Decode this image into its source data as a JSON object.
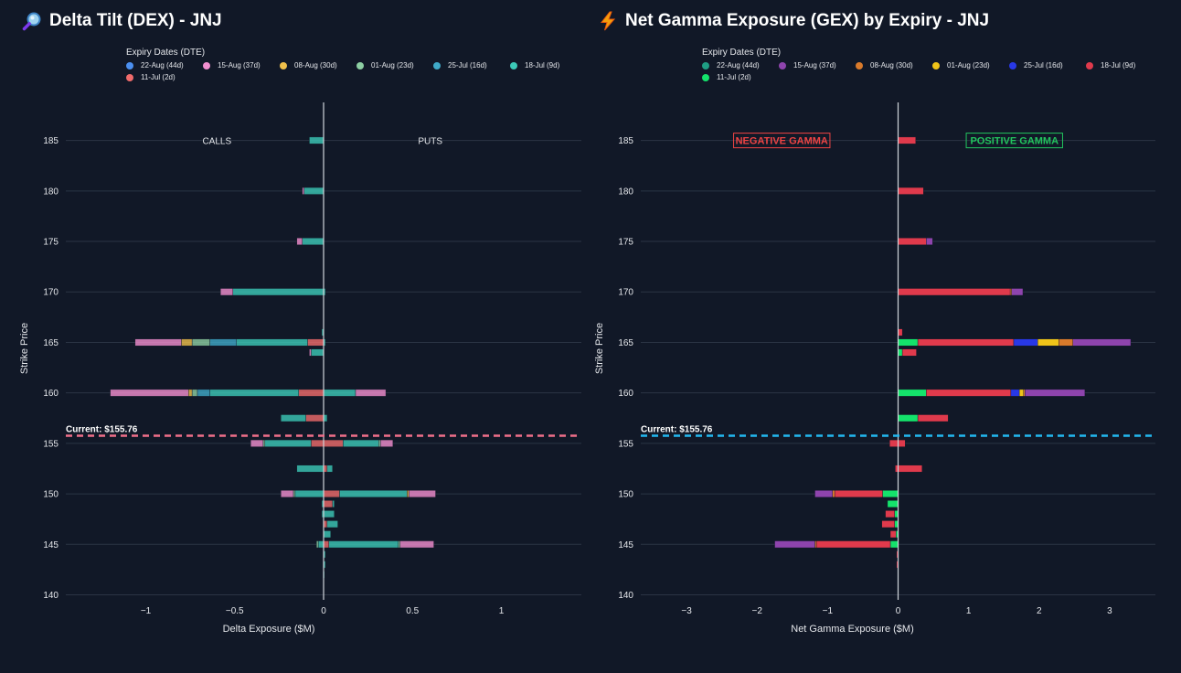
{
  "left": {
    "title": "Delta Tilt (DEX) - JNJ",
    "icon": "magnifier-icon",
    "legend_title": "Expiry Dates (DTE)",
    "legend": [
      {
        "label": "22-Aug (44d)",
        "color": "#4b8ff0"
      },
      {
        "label": "15-Aug (37d)",
        "color": "#f28fd0"
      },
      {
        "label": "08-Aug (30d)",
        "color": "#f0c04b"
      },
      {
        "label": "01-Aug (23d)",
        "color": "#8dcfa3"
      },
      {
        "label": "25-Jul (16d)",
        "color": "#3fa9c8"
      },
      {
        "label": "18-Jul (9d)",
        "color": "#3cc9b8"
      },
      {
        "label": "11-Jul (2d)",
        "color": "#f06b6b"
      }
    ]
  },
  "right": {
    "title": "Net Gamma Exposure (GEX) by Expiry - JNJ",
    "icon": "lightning-icon",
    "legend_title": "Expiry Dates (DTE)",
    "legend": [
      {
        "label": "22-Aug (44d)",
        "color": "#1f9e84"
      },
      {
        "label": "15-Aug (37d)",
        "color": "#8e44ad"
      },
      {
        "label": "08-Aug (30d)",
        "color": "#d97a2b"
      },
      {
        "label": "01-Aug (23d)",
        "color": "#f0c419"
      },
      {
        "label": "25-Jul (16d)",
        "color": "#2838e6"
      },
      {
        "label": "18-Jul (9d)",
        "color": "#e03a4c"
      },
      {
        "label": "11-Jul (2d)",
        "color": "#14e36b"
      }
    ]
  },
  "chart_data": [
    {
      "type": "bar",
      "orientation": "horizontal",
      "stacked": true,
      "title": "Delta Tilt (DEX) - JNJ",
      "xlabel": "Delta Exposure ($M)",
      "ylabel": "Strike Price",
      "xlim": [
        -1.45,
        1.45
      ],
      "ylim": [
        139.5,
        187.5
      ],
      "xticks": [
        -1,
        -0.5,
        0,
        0.5,
        1
      ],
      "xtick_labels": [
        "−1",
        "−0.5",
        "0",
        "0.5",
        "1"
      ],
      "yticks": [
        140,
        145,
        150,
        155,
        160,
        165,
        170,
        175,
        180,
        185
      ],
      "annotations": [
        {
          "text": "CALLS",
          "x": -0.6,
          "y": 185
        },
        {
          "text": "PUTS",
          "x": 0.6,
          "y": 185
        }
      ],
      "current_price": 155.76,
      "current_label": "Current: $155.76",
      "current_line_color": "#ef6f8a",
      "bar_opacity": 0.8,
      "series_colors": [
        "#f06b6b",
        "#3cc9b8",
        "#3fa9c8",
        "#8dcfa3",
        "#f0c04b",
        "#f28fd0",
        "#4b8ff0"
      ],
      "bars": [
        {
          "strike": 185,
          "segments": [
            [
              -0.08,
              "#3cc9b8"
            ]
          ]
        },
        {
          "strike": 180,
          "segments": [
            [
              -0.11,
              "#3cc9b8"
            ],
            [
              -0.01,
              "#f28fd0"
            ]
          ]
        },
        {
          "strike": 175,
          "segments": [
            [
              -0.12,
              "#3cc9b8"
            ],
            [
              -0.03,
              "#f28fd0"
            ]
          ]
        },
        {
          "strike": 170,
          "segments": [
            [
              -0.51,
              "#3cc9b8"
            ],
            [
              -0.07,
              "#f28fd0"
            ],
            [
              0.01,
              "#3cc9b8"
            ]
          ]
        },
        {
          "strike": 166,
          "segments": [
            [
              -0.01,
              "#3cc9b8"
            ]
          ]
        },
        {
          "strike": 165,
          "segments": [
            [
              -0.09,
              "#f06b6b"
            ],
            [
              -0.4,
              "#3cc9b8"
            ],
            [
              -0.15,
              "#3fa9c8"
            ],
            [
              -0.1,
              "#8dcfa3"
            ],
            [
              -0.06,
              "#f0c04b"
            ],
            [
              -0.26,
              "#f28fd0"
            ],
            [
              0.01,
              "#3cc9b8"
            ]
          ]
        },
        {
          "strike": 164,
          "segments": [
            [
              -0.07,
              "#3cc9b8"
            ],
            [
              -0.01,
              "#f28fd0"
            ]
          ]
        },
        {
          "strike": 160,
          "segments": [
            [
              -0.14,
              "#f06b6b"
            ],
            [
              -0.5,
              "#3cc9b8"
            ],
            [
              -0.07,
              "#3fa9c8"
            ],
            [
              -0.03,
              "#8dcfa3"
            ],
            [
              -0.02,
              "#f0c04b"
            ],
            [
              -0.44,
              "#f28fd0"
            ],
            [
              0.18,
              "#3cc9b8"
            ],
            [
              0.17,
              "#f28fd0"
            ]
          ]
        },
        {
          "strike": 157.5,
          "segments": [
            [
              -0.1,
              "#f06b6b"
            ],
            [
              -0.14,
              "#3cc9b8"
            ],
            [
              0.02,
              "#3cc9b8"
            ]
          ]
        },
        {
          "strike": 155,
          "segments": [
            [
              -0.07,
              "#f06b6b"
            ],
            [
              -0.26,
              "#3cc9b8"
            ],
            [
              -0.01,
              "#8dcfa3"
            ],
            [
              -0.07,
              "#f28fd0"
            ],
            [
              0.11,
              "#f06b6b"
            ],
            [
              0.2,
              "#3cc9b8"
            ],
            [
              0.01,
              "#8dcfa3"
            ],
            [
              0.07,
              "#f28fd0"
            ]
          ]
        },
        {
          "strike": 152.5,
          "segments": [
            [
              -0.15,
              "#3cc9b8"
            ],
            [
              0.02,
              "#f06b6b"
            ],
            [
              0.03,
              "#3cc9b8"
            ]
          ]
        },
        {
          "strike": 150,
          "segments": [
            [
              -0.16,
              "#3cc9b8"
            ],
            [
              -0.01,
              "#8dcfa3"
            ],
            [
              -0.07,
              "#f28fd0"
            ],
            [
              0.09,
              "#f06b6b"
            ],
            [
              0.38,
              "#3cc9b8"
            ],
            [
              0.01,
              "#f0c04b"
            ],
            [
              0.15,
              "#f28fd0"
            ]
          ]
        },
        {
          "strike": 149,
          "segments": [
            [
              -0.01,
              "#3cc9b8"
            ],
            [
              0.05,
              "#f06b6b"
            ],
            [
              0.01,
              "#3cc9b8"
            ]
          ]
        },
        {
          "strike": 148,
          "segments": [
            [
              -0.01,
              "#3cc9b8"
            ],
            [
              0.06,
              "#3cc9b8"
            ]
          ]
        },
        {
          "strike": 147,
          "segments": [
            [
              0.02,
              "#f06b6b"
            ],
            [
              0.06,
              "#3cc9b8"
            ]
          ]
        },
        {
          "strike": 146,
          "segments": [
            [
              0.04,
              "#3cc9b8"
            ]
          ]
        },
        {
          "strike": 145,
          "segments": [
            [
              -0.03,
              "#3cc9b8"
            ],
            [
              -0.01,
              "#8dcfa3"
            ],
            [
              0.03,
              "#f06b6b"
            ],
            [
              0.39,
              "#3cc9b8"
            ],
            [
              0.01,
              "#8dcfa3"
            ],
            [
              0.19,
              "#f28fd0"
            ]
          ]
        },
        {
          "strike": 144,
          "segments": [
            [
              0.01,
              "#3cc9b8"
            ]
          ]
        },
        {
          "strike": 143,
          "segments": [
            [
              0.01,
              "#3cc9b8"
            ]
          ]
        },
        {
          "strike": 142,
          "segments": [
            [
              0.005,
              "#3cc9b8"
            ]
          ]
        }
      ]
    },
    {
      "type": "bar",
      "orientation": "horizontal",
      "stacked": true,
      "title": "Net Gamma Exposure (GEX) by Expiry - JNJ",
      "xlabel": "Net Gamma Exposure ($M)",
      "ylabel": "Strike Price",
      "xlim": [
        -3.65,
        3.65
      ],
      "ylim": [
        139.5,
        187.5
      ],
      "xticks": [
        -3,
        -2,
        -1,
        0,
        1,
        2,
        3
      ],
      "xtick_labels": [
        "−3",
        "−2",
        "−1",
        "0",
        "1",
        "2",
        "3"
      ],
      "yticks": [
        140,
        145,
        150,
        155,
        160,
        165,
        170,
        175,
        180,
        185
      ],
      "annotations": [
        {
          "text": "NEGATIVE GAMMA",
          "x": -1.65,
          "y": 185,
          "color": "#ef4444"
        },
        {
          "text": "POSITIVE GAMMA",
          "x": 1.65,
          "y": 185,
          "color": "#22c55e"
        }
      ],
      "current_price": 155.76,
      "current_label": "Current: $155.76",
      "current_line_color": "#22b8f0",
      "bar_opacity": 1,
      "series_colors": [
        "#14e36b",
        "#e03a4c",
        "#2838e6",
        "#f0c419",
        "#d97a2b",
        "#8e44ad",
        "#1f9e84"
      ],
      "bars": [
        {
          "strike": 185,
          "segments": [
            [
              0.25,
              "#e03a4c"
            ]
          ]
        },
        {
          "strike": 180,
          "segments": [
            [
              0.36,
              "#e03a4c"
            ]
          ]
        },
        {
          "strike": 175,
          "segments": [
            [
              0.4,
              "#e03a4c"
            ],
            [
              0.09,
              "#8e44ad"
            ]
          ]
        },
        {
          "strike": 170,
          "segments": [
            [
              1.59,
              "#e03a4c"
            ],
            [
              0.02,
              "#d97a2b"
            ],
            [
              0.16,
              "#8e44ad"
            ]
          ]
        },
        {
          "strike": 166,
          "segments": [
            [
              0.06,
              "#e03a4c"
            ]
          ]
        },
        {
          "strike": 165,
          "segments": [
            [
              0.28,
              "#14e36b"
            ],
            [
              1.36,
              "#e03a4c"
            ],
            [
              0.34,
              "#2838e6"
            ],
            [
              0.3,
              "#f0c419"
            ],
            [
              0.2,
              "#d97a2b"
            ],
            [
              0.82,
              "#8e44ad"
            ]
          ]
        },
        {
          "strike": 164,
          "segments": [
            [
              0.06,
              "#14e36b"
            ],
            [
              0.2,
              "#e03a4c"
            ]
          ]
        },
        {
          "strike": 160,
          "segments": [
            [
              0.4,
              "#14e36b"
            ],
            [
              1.2,
              "#e03a4c"
            ],
            [
              0.12,
              "#2838e6"
            ],
            [
              0.06,
              "#f0c419"
            ],
            [
              0.02,
              "#d97a2b"
            ],
            [
              0.85,
              "#8e44ad"
            ]
          ]
        },
        {
          "strike": 157.5,
          "segments": [
            [
              0.28,
              "#14e36b"
            ],
            [
              0.43,
              "#e03a4c"
            ]
          ]
        },
        {
          "strike": 155,
          "segments": [
            [
              -0.12,
              "#e03a4c"
            ],
            [
              0.1,
              "#e03a4c"
            ]
          ]
        },
        {
          "strike": 152.5,
          "segments": [
            [
              -0.04,
              "#e03a4c"
            ],
            [
              0.34,
              "#e03a4c"
            ]
          ]
        },
        {
          "strike": 150,
          "segments": [
            [
              -0.22,
              "#14e36b"
            ],
            [
              -0.68,
              "#e03a4c"
            ],
            [
              -0.03,
              "#d97a2b"
            ],
            [
              -0.25,
              "#8e44ad"
            ]
          ]
        },
        {
          "strike": 149,
          "segments": [
            [
              -0.15,
              "#14e36b"
            ]
          ]
        },
        {
          "strike": 148,
          "segments": [
            [
              -0.05,
              "#14e36b"
            ],
            [
              -0.13,
              "#e03a4c"
            ]
          ]
        },
        {
          "strike": 147,
          "segments": [
            [
              -0.05,
              "#14e36b"
            ],
            [
              -0.18,
              "#e03a4c"
            ]
          ]
        },
        {
          "strike": 146,
          "segments": [
            [
              -0.03,
              "#14e36b"
            ],
            [
              -0.08,
              "#e03a4c"
            ]
          ]
        },
        {
          "strike": 145,
          "segments": [
            [
              -0.11,
              "#14e36b"
            ],
            [
              -1.05,
              "#e03a4c"
            ],
            [
              -0.02,
              "#d97a2b"
            ],
            [
              -0.57,
              "#8e44ad"
            ]
          ]
        },
        {
          "strike": 144,
          "segments": [
            [
              -0.02,
              "#e03a4c"
            ]
          ]
        },
        {
          "strike": 143,
          "segments": [
            [
              -0.02,
              "#e03a4c"
            ]
          ]
        }
      ]
    }
  ]
}
